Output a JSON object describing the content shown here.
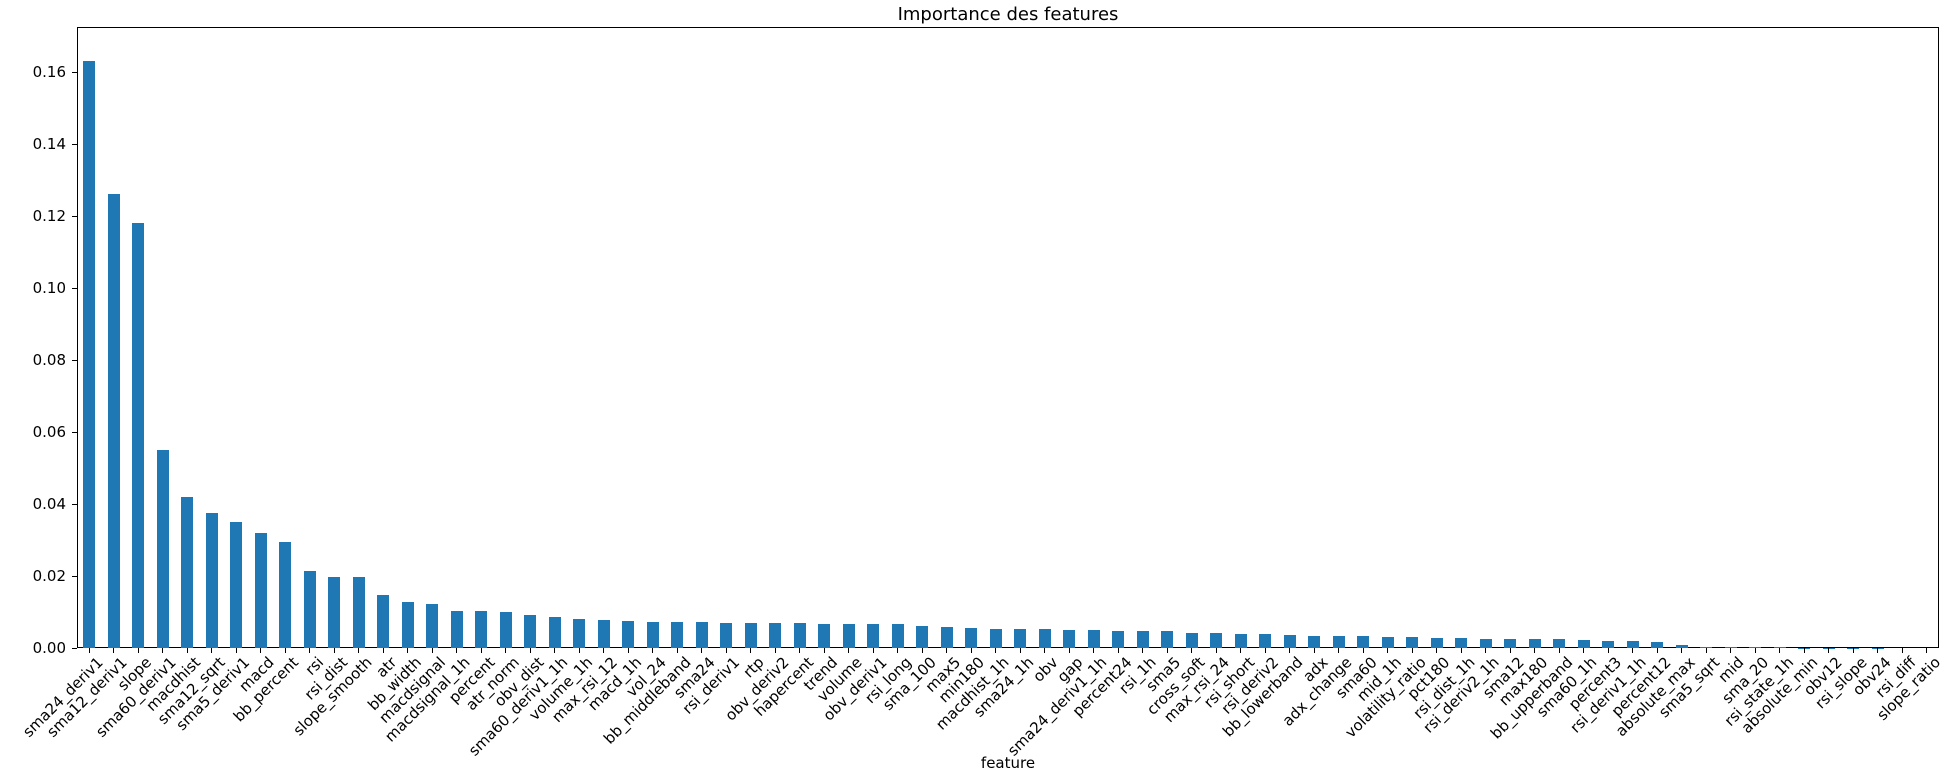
{
  "chart_data": {
    "type": "bar",
    "title": "Importance des features",
    "xlabel": "feature",
    "ylabel": "",
    "bar_color": "#1f77b4",
    "background_color": "#ffffff",
    "axis_color": "#000000",
    "grid": false,
    "legend": false,
    "ylim": [
      0,
      0.1725
    ],
    "yticks": [
      0.0,
      0.02,
      0.04,
      0.06,
      0.08,
      0.1,
      0.12,
      0.14,
      0.16
    ],
    "categories": [
      "sma24_deriv1",
      "sma12_deriv1",
      "slope",
      "sma60_deriv1",
      "macdhist",
      "sma12_sqrt",
      "sma5_deriv1",
      "macd",
      "bb_percent",
      "rsi",
      "rsi_dist",
      "slope_smooth",
      "atr",
      "bb_width",
      "macdsignal",
      "macdsignal_1h",
      "percent",
      "atr_norm",
      "obv_dist",
      "sma60_deriv1_1h",
      "volume_1h",
      "max_rsi_12",
      "macd_1h",
      "vol_24",
      "bb_middleband",
      "sma24",
      "rsi_deriv1",
      "rtp",
      "obv_deriv2",
      "hapercent",
      "trend",
      "volume",
      "obv_deriv1",
      "rsi_long",
      "sma_100",
      "max5",
      "min180",
      "macdhist_1h",
      "sma24_1h",
      "obv",
      "gap",
      "sma24_deriv1_1h",
      "percent24",
      "rsi_1h",
      "sma5",
      "cross_soft",
      "max_rsi_24",
      "rsi_short",
      "rsi_deriv2",
      "bb_lowerband",
      "adx",
      "adx_change",
      "sma60",
      "mid_1h",
      "volatility_ratio",
      "pct180",
      "rsi_dist_1h",
      "rsi_deriv2_1h",
      "sma12",
      "max180",
      "bb_upperband",
      "sma60_1h",
      "percent3",
      "rsi_deriv1_1h",
      "percent12",
      "absolute_max",
      "sma5_sqrt",
      "mid",
      "sma_20",
      "rsi_state_1h",
      "absolute_min",
      "obv12",
      "rsi_slope",
      "obv24",
      "rsi_diff",
      "slope_ratio"
    ],
    "values": [
      0.163,
      0.126,
      0.118,
      0.055,
      0.042,
      0.0375,
      0.035,
      0.032,
      0.0295,
      0.0213,
      0.0198,
      0.0197,
      0.0147,
      0.0129,
      0.0122,
      0.0104,
      0.0103,
      0.0101,
      0.0092,
      0.0085,
      0.0081,
      0.0078,
      0.0076,
      0.0073,
      0.0072,
      0.0071,
      0.007,
      0.007,
      0.0069,
      0.0069,
      0.0068,
      0.0068,
      0.0067,
      0.0066,
      0.0062,
      0.0058,
      0.0055,
      0.0054,
      0.0053,
      0.0052,
      0.0051,
      0.005,
      0.0048,
      0.0047,
      0.0046,
      0.0043,
      0.0042,
      0.004,
      0.0038,
      0.0037,
      0.0034,
      0.0033,
      0.0033,
      0.0031,
      0.003,
      0.0028,
      0.0027,
      0.0026,
      0.0025,
      0.0024,
      0.0024,
      0.0023,
      0.002,
      0.0019,
      0.0018,
      0.0009,
      0.0003,
      0.0002,
      0.0002,
      0.0002,
      0.0001,
      0.0001,
      0.0001,
      0.0001,
      0.0,
      0.0
    ]
  }
}
